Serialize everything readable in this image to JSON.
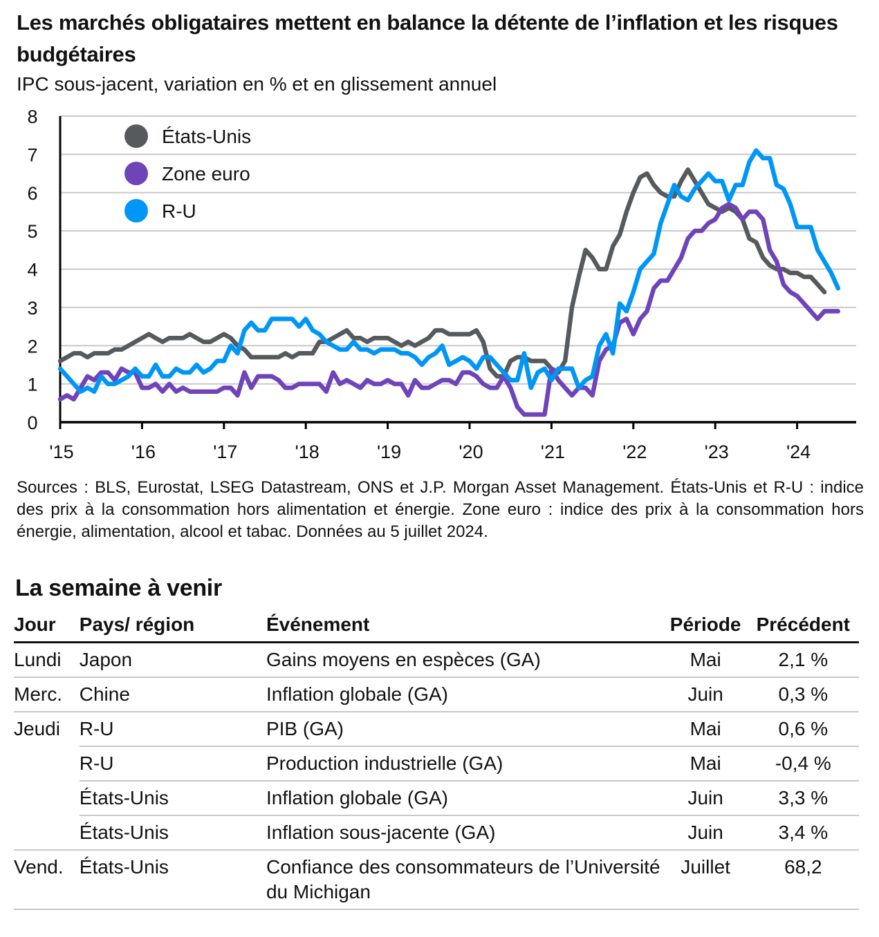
{
  "header": {
    "title": "Les marchés obligataires mettent en balance la détente de l’inflation et les risques budgétaires",
    "subtitle": "IPC sous-jacent, variation en % et en glissement annuel"
  },
  "chart_data": {
    "type": "line",
    "title": "Les marchés obligataires mettent en balance la détente de l’inflation et les risques budgétaires",
    "subtitle": "IPC sous-jacent, variation en % et en glissement annuel",
    "xlabel": "",
    "ylabel": "",
    "ylim": [
      0,
      8
    ],
    "yticks": [
      "0",
      "1",
      "2",
      "3",
      "4",
      "5",
      "6",
      "7",
      "8"
    ],
    "xticks": [
      "'15",
      "'16",
      "'17",
      "'18",
      "'19",
      "'20",
      "'21",
      "'22",
      "'23",
      "'24"
    ],
    "x_start": "2015-01",
    "x_frequency": "monthly",
    "grid": true,
    "legend_position": "top-left",
    "series": [
      {
        "name": "États-Unis",
        "color": "#575a5d",
        "start": "2015-01",
        "values": [
          1.6,
          1.7,
          1.8,
          1.8,
          1.7,
          1.8,
          1.8,
          1.8,
          1.9,
          1.9,
          2.0,
          2.1,
          2.2,
          2.3,
          2.2,
          2.1,
          2.2,
          2.2,
          2.2,
          2.3,
          2.2,
          2.1,
          2.1,
          2.2,
          2.3,
          2.2,
          2.0,
          1.9,
          1.7,
          1.7,
          1.7,
          1.7,
          1.7,
          1.8,
          1.7,
          1.8,
          1.8,
          1.8,
          2.1,
          2.1,
          2.2,
          2.3,
          2.4,
          2.2,
          2.2,
          2.1,
          2.2,
          2.2,
          2.2,
          2.1,
          2.0,
          2.1,
          2.0,
          2.1,
          2.2,
          2.4,
          2.4,
          2.3,
          2.3,
          2.3,
          2.3,
          2.4,
          2.1,
          1.4,
          1.2,
          1.2,
          1.6,
          1.7,
          1.7,
          1.6,
          1.6,
          1.6,
          1.4,
          1.3,
          1.6,
          3.0,
          3.8,
          4.5,
          4.3,
          4.0,
          4.0,
          4.6,
          4.9,
          5.5,
          6.0,
          6.4,
          6.5,
          6.2,
          6.0,
          5.9,
          5.9,
          6.3,
          6.6,
          6.3,
          6.0,
          5.7,
          5.6,
          5.5,
          5.6,
          5.5,
          5.3,
          4.8,
          4.7,
          4.3,
          4.1,
          4.0,
          4.0,
          3.9,
          3.9,
          3.8,
          3.8,
          3.6,
          3.4
        ]
      },
      {
        "name": "Zone euro",
        "color": "#7044b9",
        "start": "2015-01",
        "values": [
          0.6,
          0.7,
          0.6,
          0.9,
          1.2,
          1.1,
          1.3,
          1.3,
          1.1,
          1.4,
          1.3,
          1.3,
          0.9,
          0.9,
          1.0,
          0.8,
          1.0,
          0.8,
          0.9,
          0.8,
          0.8,
          0.8,
          0.8,
          0.8,
          0.9,
          0.9,
          0.7,
          1.3,
          0.9,
          1.2,
          1.2,
          1.2,
          1.1,
          0.9,
          0.9,
          1.0,
          1.0,
          1.0,
          1.0,
          0.8,
          1.3,
          1.0,
          1.1,
          1.0,
          0.9,
          1.1,
          1.0,
          1.0,
          1.1,
          1.0,
          1.0,
          0.7,
          1.1,
          0.9,
          0.9,
          1.0,
          1.1,
          1.1,
          1.0,
          1.3,
          1.3,
          1.2,
          1.0,
          0.9,
          0.9,
          1.2,
          0.9,
          0.4,
          0.2,
          0.2,
          0.2,
          0.2,
          1.4,
          1.1,
          0.9,
          0.7,
          0.9,
          0.9,
          0.7,
          1.6,
          1.9,
          2.0,
          2.6,
          2.7,
          2.3,
          2.7,
          2.9,
          3.5,
          3.7,
          3.7,
          4.0,
          4.3,
          4.8,
          5.0,
          5.0,
          5.2,
          5.3,
          5.6,
          5.7,
          5.6,
          5.3,
          5.5,
          5.5,
          5.3,
          4.5,
          4.2,
          3.6,
          3.4,
          3.3,
          3.1,
          2.9,
          2.7,
          2.9,
          2.9,
          2.9
        ]
      },
      {
        "name": "R-U",
        "color": "#0096f5",
        "start": "2015-01",
        "values": [
          1.4,
          1.2,
          1.0,
          0.8,
          0.9,
          0.8,
          1.2,
          1.0,
          1.0,
          1.1,
          1.2,
          1.4,
          1.2,
          1.2,
          1.5,
          1.2,
          1.2,
          1.4,
          1.3,
          1.3,
          1.5,
          1.3,
          1.4,
          1.6,
          1.6,
          2.0,
          1.8,
          2.4,
          2.6,
          2.4,
          2.4,
          2.7,
          2.7,
          2.7,
          2.7,
          2.5,
          2.7,
          2.4,
          2.3,
          2.1,
          2.0,
          1.9,
          1.9,
          2.1,
          1.9,
          1.9,
          1.8,
          1.9,
          1.9,
          1.9,
          1.8,
          1.8,
          1.7,
          1.5,
          1.7,
          1.8,
          2.0,
          1.5,
          1.6,
          1.7,
          1.6,
          1.4,
          1.7,
          1.7,
          1.5,
          1.3,
          1.1,
          1.1,
          1.8,
          0.9,
          1.3,
          1.4,
          1.1,
          1.4,
          1.4,
          1.4,
          0.9,
          1.1,
          1.2,
          2.0,
          2.3,
          1.8,
          3.1,
          2.9,
          3.4,
          4.0,
          4.2,
          4.4,
          5.2,
          5.7,
          6.2,
          5.9,
          5.8,
          6.1,
          6.3,
          6.5,
          6.3,
          6.3,
          5.8,
          6.2,
          6.2,
          6.8,
          7.1,
          6.9,
          6.9,
          6.2,
          6.1,
          5.7,
          5.1,
          5.1,
          5.1,
          4.5,
          4.2,
          3.9,
          3.5
        ]
      }
    ]
  },
  "legend": {
    "items": [
      {
        "label": "États-Unis",
        "color": "#575a5d"
      },
      {
        "label": "Zone euro",
        "color": "#7044b9"
      },
      {
        "label": "R-U",
        "color": "#0096f5"
      }
    ]
  },
  "notes": "Sources : BLS, Eurostat, LSEG Datastream, ONS et J.P. Morgan Asset Management. États-Unis et R-U : indice des prix à la consommation hors alimentation et énergie. Zone euro : indice des prix à la consommation hors énergie, alimentation, alcool et tabac. Données au 5 juillet 2024.",
  "calendar": {
    "title": "La semaine à venir",
    "columns": [
      "Jour",
      "Pays/ région",
      "Événement",
      "Période",
      "Précédent"
    ],
    "rows": [
      {
        "jour": "Lundi",
        "pays": "Japon",
        "evenement": "Gains moyens en espèces (GA)",
        "periode": "Mai",
        "precedent": "2,1 %"
      },
      {
        "jour": "Merc.",
        "pays": "Chine",
        "evenement": "Inflation globale (GA)",
        "periode": "Juin",
        "precedent": "0,3 %"
      },
      {
        "jour": "Jeudi",
        "pays": "R-U",
        "evenement": "PIB (GA)",
        "periode": "Mai",
        "precedent": "0,6 %"
      },
      {
        "jour": "",
        "pays": "R-U",
        "evenement": "Production industrielle (GA)",
        "periode": "Mai",
        "precedent": "-0,4 %"
      },
      {
        "jour": "",
        "pays": "États-Unis",
        "evenement": "Inflation globale (GA)",
        "periode": "Juin",
        "precedent": "3,3 %"
      },
      {
        "jour": "",
        "pays": "États-Unis",
        "evenement": "Inflation sous-jacente (GA)",
        "periode": "Juin",
        "precedent": "3,4 %"
      },
      {
        "jour": "Vend.",
        "pays": "États-Unis",
        "evenement": "Confiance des consommateurs de l’Université du Michigan",
        "periode": "Juillet",
        "precedent": "68,2"
      }
    ]
  }
}
